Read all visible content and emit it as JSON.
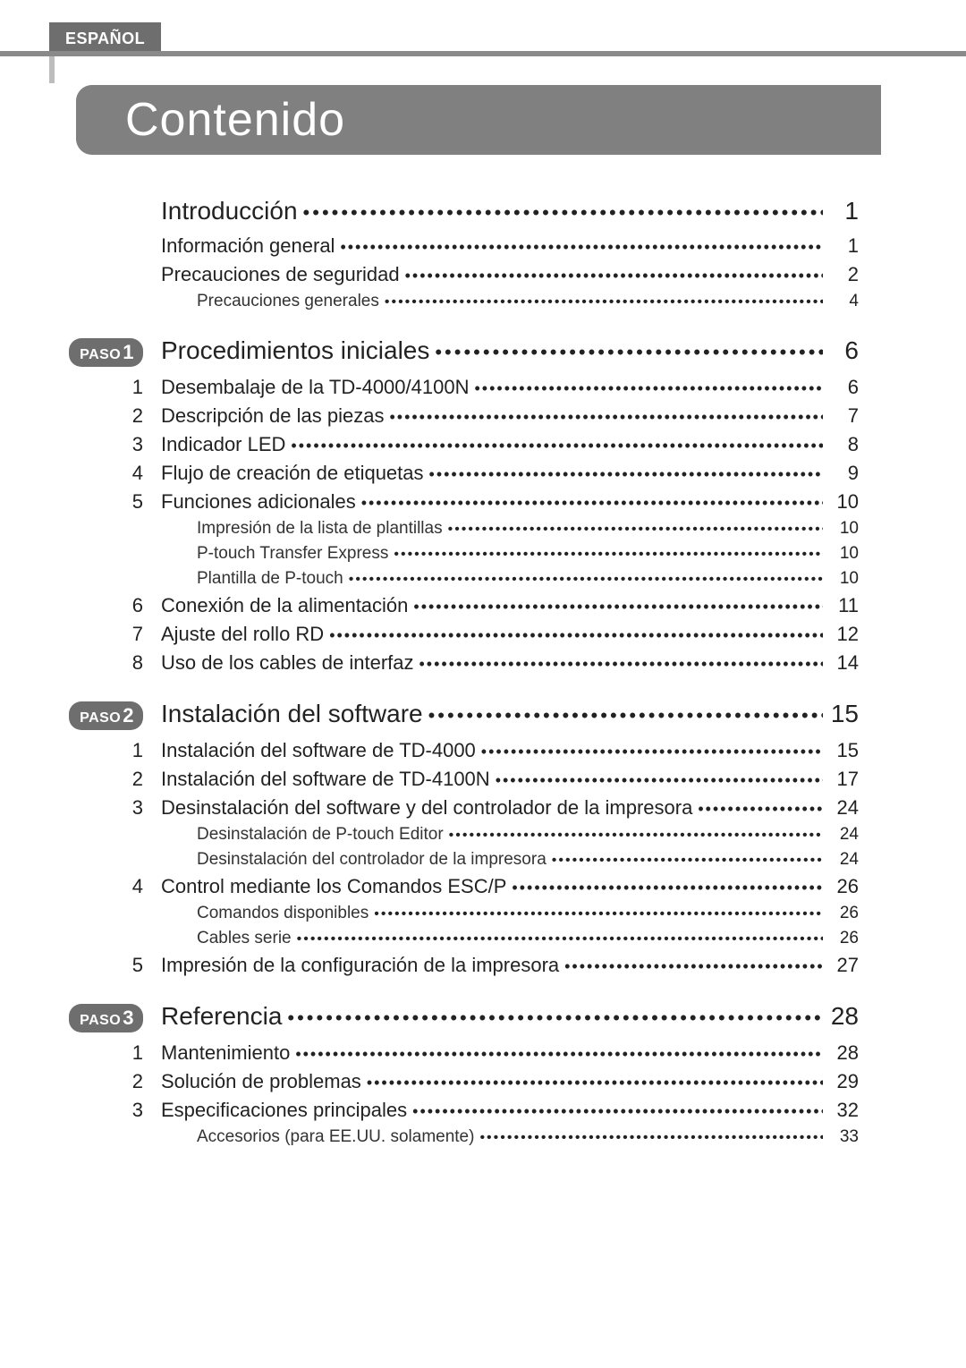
{
  "language_tab": "ESPAÑOL",
  "title": "Contenido",
  "paso_label": "PASO",
  "dots_long": "•••••••••••••••••••••••••••••••••••••••••••••••••••••••••••••••••••••••••••••••••••••••••••••••••••••••••••••••••••••••••••••••••••••••••••••••••••••••••",
  "sections": [
    {
      "badge": null,
      "title": "Introducción",
      "page": "1",
      "items": [
        {
          "num": "",
          "label": "Información general",
          "page": "1",
          "sub": []
        },
        {
          "num": "",
          "label": "Precauciones de seguridad",
          "page": "2",
          "sub": [
            {
              "label": "Precauciones generales",
              "page": "4"
            }
          ]
        }
      ]
    },
    {
      "badge": "1",
      "title": "Procedimientos iniciales",
      "page": "6",
      "items": [
        {
          "num": "1",
          "label": "Desembalaje de la TD-4000/4100N",
          "page": "6",
          "sub": []
        },
        {
          "num": "2",
          "label": "Descripción de las piezas",
          "page": "7",
          "sub": []
        },
        {
          "num": "3",
          "label": "Indicador LED",
          "page": "8",
          "sub": []
        },
        {
          "num": "4",
          "label": "Flujo de creación de etiquetas",
          "page": "9",
          "sub": []
        },
        {
          "num": "5",
          "label": "Funciones adicionales",
          "page": "10",
          "sub": [
            {
              "label": "Impresión de la lista de plantillas",
              "page": "10"
            },
            {
              "label": "P-touch Transfer Express",
              "page": "10"
            },
            {
              "label": "Plantilla de P-touch",
              "page": "10"
            }
          ]
        },
        {
          "num": "6",
          "label": "Conexión de la alimentación",
          "page": "11",
          "sub": []
        },
        {
          "num": "7",
          "label": "Ajuste del rollo RD",
          "page": "12",
          "sub": []
        },
        {
          "num": "8",
          "label": "Uso de los cables de interfaz",
          "page": "14",
          "sub": []
        }
      ]
    },
    {
      "badge": "2",
      "title": "Instalación del software",
      "page": "15",
      "items": [
        {
          "num": "1",
          "label": "Instalación del software de TD-4000",
          "page": "15",
          "sub": []
        },
        {
          "num": "2",
          "label": "Instalación del software de TD-4100N",
          "page": "17",
          "sub": []
        },
        {
          "num": "3",
          "label": "Desinstalación del software y del controlador de la impresora",
          "page": "24",
          "sub": [
            {
              "label": "Desinstalación de P-touch Editor",
              "page": "24"
            },
            {
              "label": "Desinstalación del controlador de la impresora",
              "page": "24"
            }
          ]
        },
        {
          "num": "4",
          "label": "Control mediante los Comandos ESC/P",
          "page": "26",
          "sub": [
            {
              "label": "Comandos disponibles",
              "page": "26"
            },
            {
              "label": "Cables serie",
              "page": "26"
            }
          ]
        },
        {
          "num": "5",
          "label": "Impresión de la configuración de la impresora",
          "page": "27",
          "sub": []
        }
      ]
    },
    {
      "badge": "3",
      "title": "Referencia",
      "page": "28",
      "items": [
        {
          "num": "1",
          "label": "Mantenimiento",
          "page": "28",
          "sub": []
        },
        {
          "num": "2",
          "label": "Solución de problemas",
          "page": "29",
          "sub": []
        },
        {
          "num": "3",
          "label": "Especificaciones principales",
          "page": "32",
          "sub": [
            {
              "label": "Accesorios (para EE.UU. solamente)",
              "page": "33"
            }
          ]
        }
      ]
    }
  ]
}
